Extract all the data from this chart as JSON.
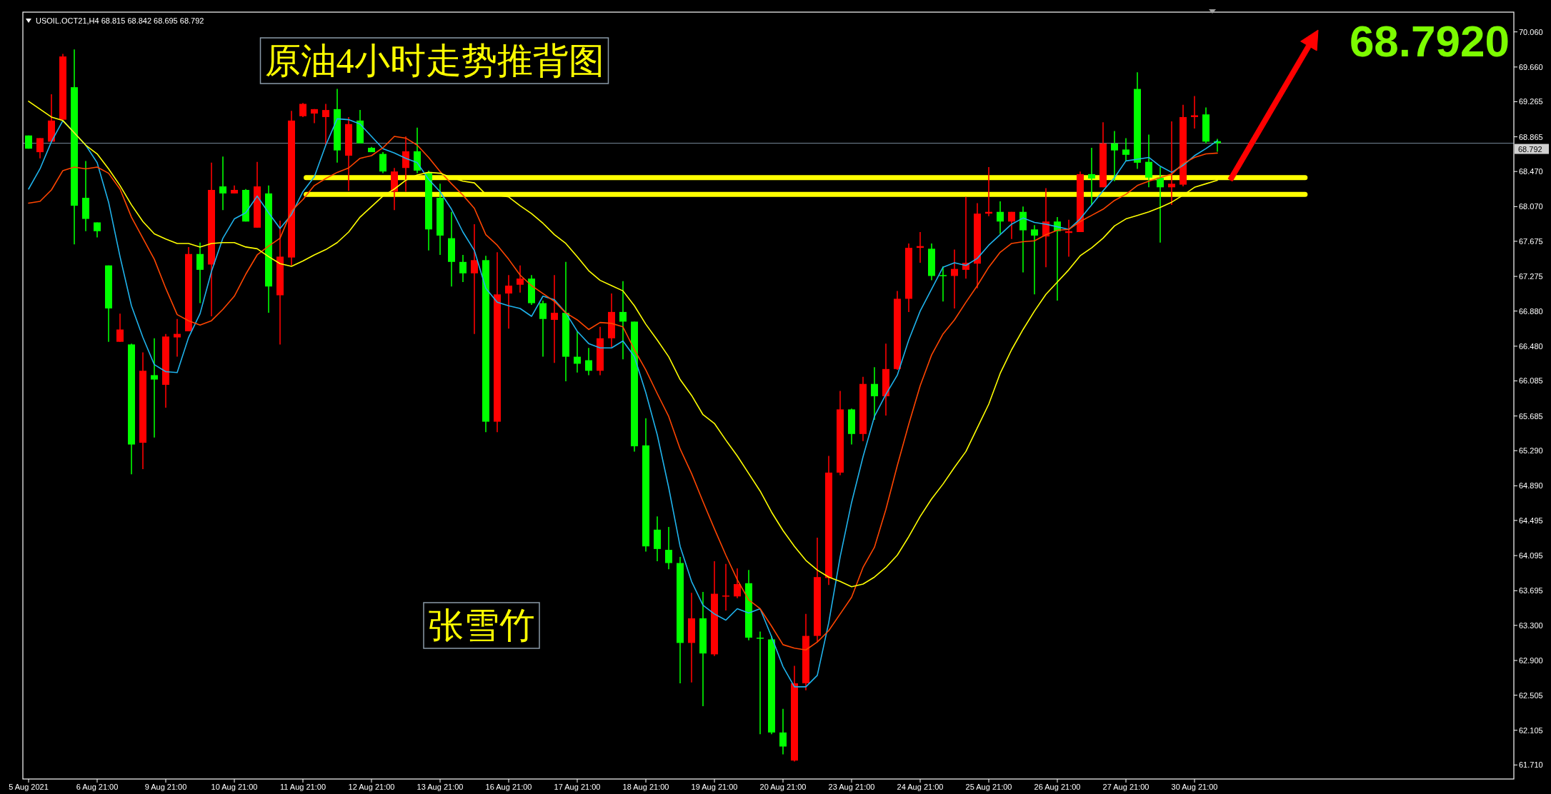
{
  "chart_data": {
    "type": "candlestick",
    "title": "原油4小时走势推背图",
    "annotations": [
      "USOIL.OCT21,H4  68.815 68.842 68.695 68.792",
      "张雪竹",
      "68.7920"
    ],
    "categories": [
      "5 Aug 2021",
      null,
      null,
      null,
      null,
      null,
      "6 Aug 21:00",
      null,
      null,
      null,
      null,
      null,
      "9 Aug 21:00",
      null,
      null,
      null,
      null,
      null,
      "10 Aug 21:00",
      null,
      null,
      null,
      null,
      null,
      "11 Aug 21:00",
      null,
      null,
      null,
      null,
      null,
      "12 Aug 21:00",
      null,
      null,
      null,
      null,
      null,
      "13 Aug 21:00",
      null,
      null,
      null,
      null,
      null,
      "16 Aug 21:00",
      null,
      null,
      null,
      null,
      null,
      "17 Aug 21:00",
      null,
      null,
      null,
      null,
      null,
      "18 Aug 21:00",
      null,
      null,
      null,
      null,
      null,
      "19 Aug 21:00",
      null,
      null,
      null,
      null,
      null,
      "20 Aug 21:00",
      null,
      null,
      null,
      null,
      null,
      "23 Aug 21:00",
      null,
      null,
      null,
      null,
      null,
      "24 Aug 21:00",
      null,
      null,
      null,
      null,
      null,
      "25 Aug 21:00",
      null,
      null,
      null,
      null,
      null,
      "26 Aug 21:00",
      null,
      null,
      null,
      null,
      null,
      "27 Aug 21:00",
      null,
      null,
      null,
      null,
      null,
      "30 Aug 21:00",
      null,
      null
    ],
    "ohlc": [
      [
        68.88,
        68.88,
        68.73,
        68.73
      ],
      [
        68.69,
        68.85,
        68.62,
        68.85
      ],
      [
        68.81,
        69.35,
        68.81,
        69.05
      ],
      [
        69.06,
        69.81,
        69.06,
        69.78
      ],
      [
        69.43,
        69.86,
        67.64,
        68.08
      ],
      [
        68.17,
        68.59,
        67.79,
        67.93
      ],
      [
        67.89,
        67.89,
        67.72,
        67.79
      ],
      [
        67.4,
        67.4,
        66.53,
        66.91
      ],
      [
        66.53,
        66.85,
        66.53,
        66.67
      ],
      [
        66.5,
        66.51,
        65.02,
        65.36
      ],
      [
        65.38,
        66.41,
        65.08,
        66.2
      ],
      [
        66.15,
        66.57,
        65.44,
        66.1
      ],
      [
        66.04,
        66.62,
        65.78,
        66.59
      ],
      [
        66.58,
        66.79,
        66.36,
        66.62
      ],
      [
        66.65,
        67.61,
        66.65,
        67.53
      ],
      [
        67.53,
        67.66,
        66.97,
        67.35
      ],
      [
        67.41,
        68.57,
        66.82,
        68.26
      ],
      [
        68.3,
        68.64,
        68.03,
        68.22
      ],
      [
        68.22,
        68.31,
        68.22,
        68.26
      ],
      [
        68.26,
        68.27,
        67.9,
        67.9
      ],
      [
        67.83,
        68.58,
        67.83,
        68.3
      ],
      [
        68.22,
        68.31,
        66.86,
        67.16
      ],
      [
        67.06,
        67.91,
        66.5,
        67.5
      ],
      [
        67.49,
        69.16,
        67.4,
        69.05
      ],
      [
        69.1,
        69.25,
        69.09,
        69.24
      ],
      [
        69.13,
        69.18,
        69.02,
        69.18
      ],
      [
        69.09,
        69.24,
        68.77,
        69.17
      ],
      [
        69.18,
        69.41,
        68.57,
        68.71
      ],
      [
        68.65,
        69.09,
        68.25,
        69.01
      ],
      [
        69.05,
        69.17,
        68.79,
        68.79
      ],
      [
        68.74,
        68.75,
        68.69,
        68.69
      ],
      [
        68.67,
        68.69,
        68.45,
        68.47
      ],
      [
        68.24,
        68.51,
        68.03,
        68.47
      ],
      [
        68.51,
        68.87,
        68.24,
        68.7
      ],
      [
        68.7,
        68.97,
        68.45,
        68.48
      ],
      [
        68.46,
        68.48,
        67.57,
        67.81
      ],
      [
        68.17,
        68.33,
        67.52,
        67.74
      ],
      [
        67.71,
        68.01,
        67.16,
        67.44
      ],
      [
        67.44,
        67.52,
        67.21,
        67.31
      ],
      [
        67.31,
        67.87,
        66.62,
        67.46
      ],
      [
        67.46,
        67.51,
        65.5,
        65.62
      ],
      [
        65.62,
        67.55,
        65.5,
        67.07
      ],
      [
        67.08,
        67.29,
        66.68,
        67.17
      ],
      [
        67.18,
        67.4,
        67.09,
        67.25
      ],
      [
        67.25,
        67.29,
        66.95,
        66.97
      ],
      [
        66.97,
        67.0,
        66.36,
        66.79
      ],
      [
        66.78,
        67.29,
        66.29,
        66.86
      ],
      [
        66.86,
        67.44,
        66.08,
        66.36
      ],
      [
        66.36,
        66.65,
        66.18,
        66.28
      ],
      [
        66.32,
        66.46,
        66.15,
        66.2
      ],
      [
        66.2,
        66.7,
        66.15,
        66.57
      ],
      [
        66.57,
        67.08,
        66.47,
        66.87
      ],
      [
        66.87,
        67.22,
        66.33,
        66.76
      ],
      [
        66.76,
        66.76,
        65.28,
        65.34
      ],
      [
        65.35,
        65.66,
        64.14,
        64.2
      ],
      [
        64.39,
        64.54,
        64.03,
        64.17
      ],
      [
        64.16,
        64.42,
        63.94,
        64.01
      ],
      [
        64.01,
        64.08,
        62.64,
        63.1
      ],
      [
        63.1,
        63.67,
        62.65,
        63.38
      ],
      [
        63.38,
        63.68,
        62.38,
        62.98
      ],
      [
        62.97,
        64.03,
        62.95,
        63.66
      ],
      [
        63.63,
        64.0,
        63.47,
        63.64
      ],
      [
        63.63,
        63.95,
        63.61,
        63.77
      ],
      [
        63.78,
        63.93,
        63.13,
        63.16
      ],
      [
        63.16,
        63.23,
        62.06,
        63.15
      ],
      [
        63.14,
        63.18,
        62.06,
        62.08
      ],
      [
        62.08,
        62.35,
        61.83,
        61.92
      ],
      [
        61.76,
        62.84,
        61.75,
        62.64
      ],
      [
        62.64,
        63.43,
        62.56,
        63.18
      ],
      [
        63.18,
        64.3,
        63.11,
        63.85
      ],
      [
        63.84,
        65.23,
        63.76,
        65.04
      ],
      [
        65.04,
        65.97,
        65.01,
        65.76
      ],
      [
        65.76,
        65.77,
        65.36,
        65.48
      ],
      [
        65.48,
        66.13,
        65.4,
        66.05
      ],
      [
        66.05,
        66.24,
        65.64,
        65.91
      ],
      [
        65.91,
        66.51,
        65.69,
        66.22
      ],
      [
        66.22,
        67.11,
        66.21,
        67.02
      ],
      [
        67.02,
        67.65,
        66.87,
        67.6
      ],
      [
        67.6,
        67.78,
        67.43,
        67.62
      ],
      [
        67.59,
        67.65,
        67.23,
        67.28
      ],
      [
        67.29,
        67.39,
        66.99,
        67.28
      ],
      [
        67.28,
        67.58,
        66.91,
        67.36
      ],
      [
        67.35,
        68.18,
        67.25,
        67.43
      ],
      [
        67.42,
        68.11,
        67.14,
        67.99
      ],
      [
        67.99,
        68.52,
        67.96,
        68.01
      ],
      [
        68.01,
        68.13,
        67.76,
        67.9
      ],
      [
        67.9,
        68.01,
        67.7,
        68.01
      ],
      [
        68.01,
        68.07,
        67.32,
        67.8
      ],
      [
        67.81,
        67.86,
        67.07,
        67.74
      ],
      [
        67.73,
        68.28,
        67.38,
        67.9
      ],
      [
        67.9,
        67.95,
        67.0,
        67.79
      ],
      [
        67.77,
        67.92,
        67.5,
        67.79
      ],
      [
        67.78,
        68.47,
        67.78,
        68.44
      ],
      [
        68.44,
        68.74,
        68.09,
        68.39
      ],
      [
        68.29,
        69.03,
        68.29,
        68.79
      ],
      [
        68.79,
        68.93,
        68.36,
        68.71
      ],
      [
        68.72,
        68.85,
        68.59,
        68.66
      ],
      [
        69.41,
        69.6,
        68.5,
        68.57
      ],
      [
        68.58,
        68.89,
        68.29,
        68.4
      ],
      [
        68.4,
        68.52,
        67.66,
        68.29
      ],
      [
        68.29,
        69.04,
        68.09,
        68.33
      ],
      [
        68.32,
        69.23,
        68.3,
        69.09
      ],
      [
        69.09,
        69.33,
        68.96,
        69.11
      ],
      [
        69.12,
        69.2,
        68.79,
        68.81
      ],
      [
        68.815,
        68.842,
        68.695,
        68.792
      ]
    ],
    "colors": [
      "#00ff00",
      "#ff0000",
      "#ff0000",
      "#ff0000",
      "#00ff00",
      "#00ff00",
      "#00ff00",
      "#00ff00",
      "#ff0000",
      "#00ff00",
      "#ff0000",
      "#00ff00",
      "#ff0000",
      "#ff0000",
      "#ff0000",
      "#00ff00",
      "#ff0000",
      "#00ff00",
      "#ff0000",
      "#00ff00",
      "#ff0000",
      "#00ff00",
      "#ff0000",
      "#ff0000",
      "#ff0000",
      "#ff0000",
      "#ff0000",
      "#00ff00",
      "#ff0000",
      "#00ff00",
      "#00ff00",
      "#00ff00",
      "#ff0000",
      "#ff0000",
      "#00ff00",
      "#00ff00",
      "#00ff00",
      "#00ff00",
      "#00ff00",
      "#ff0000",
      "#00ff00",
      "#ff0000",
      "#ff0000",
      "#ff0000",
      "#00ff00",
      "#00ff00",
      "#ff0000",
      "#00ff00",
      "#00ff00",
      "#00ff00",
      "#ff0000",
      "#ff0000",
      "#00ff00",
      "#00ff00",
      "#00ff00",
      "#00ff00",
      "#00ff00",
      "#00ff00",
      "#ff0000",
      "#00ff00",
      "#ff0000",
      "#ff0000",
      "#ff0000",
      "#00ff00",
      "#00ff00",
      "#00ff00",
      "#00ff00",
      "#ff0000",
      "#ff0000",
      "#ff0000",
      "#ff0000",
      "#ff0000",
      "#00ff00",
      "#ff0000",
      "#00ff00",
      "#ff0000",
      "#ff0000",
      "#ff0000",
      "#ff0000",
      "#00ff00",
      "#00ff00",
      "#ff0000",
      "#ff0000",
      "#ff0000",
      "#ff0000",
      "#00ff00",
      "#ff0000",
      "#00ff00",
      "#00ff00",
      "#ff0000",
      "#00ff00",
      "#ff0000",
      "#ff0000",
      "#00ff00",
      "#ff0000",
      "#00ff00",
      "#00ff00",
      "#00ff00",
      "#00ff00",
      "#00ff00",
      "#ff0000",
      "#ff0000",
      "#ff0000",
      "#00ff00",
      "#00ff00"
    ],
    "series": [
      {
        "type": "line",
        "color": "#1fb3ec",
        "values": [
          68.27,
          68.5,
          68.81,
          69.05,
          68.91,
          68.77,
          68.57,
          68.12,
          67.5,
          66.94,
          66.58,
          66.27,
          66.19,
          66.18,
          66.58,
          66.85,
          67.33,
          67.71,
          67.93,
          68.0,
          68.19,
          68.0,
          67.82,
          67.98,
          68.24,
          68.41,
          68.77,
          69.07,
          69.06,
          69.01,
          68.87,
          68.73,
          68.68,
          68.62,
          68.57,
          68.38,
          68.24,
          68.04,
          67.78,
          67.57,
          67.14,
          66.98,
          66.94,
          66.91,
          66.82,
          67.05,
          67.01,
          66.86,
          66.65,
          66.51,
          66.46,
          66.46,
          66.54,
          66.36,
          65.95,
          65.47,
          64.87,
          64.2,
          63.8,
          63.53,
          63.43,
          63.36,
          63.49,
          63.44,
          63.49,
          63.17,
          62.83,
          62.6,
          62.6,
          62.73,
          63.33,
          64.08,
          64.7,
          65.22,
          65.68,
          65.93,
          66.15,
          66.55,
          66.88,
          67.13,
          67.38,
          67.43,
          67.4,
          67.48,
          67.63,
          67.75,
          67.87,
          67.94,
          67.89,
          67.87,
          67.84,
          67.81,
          67.93,
          68.09,
          68.25,
          68.4,
          68.59,
          68.61,
          68.63,
          68.53,
          68.46,
          68.54,
          68.65,
          68.73,
          68.82
        ]
      },
      {
        "type": "line",
        "color": "#ff4500",
        "values": [
          68.11,
          68.13,
          68.26,
          68.48,
          68.52,
          68.5,
          68.52,
          68.45,
          68.27,
          67.95,
          67.71,
          67.47,
          67.14,
          66.84,
          66.77,
          66.72,
          66.77,
          66.9,
          67.05,
          67.3,
          67.52,
          67.62,
          67.71,
          68.02,
          68.15,
          68.31,
          68.39,
          68.46,
          68.51,
          68.62,
          68.65,
          68.74,
          68.87,
          68.85,
          68.77,
          68.63,
          68.47,
          68.33,
          68.2,
          68.05,
          67.75,
          67.63,
          67.47,
          67.29,
          67.17,
          67.08,
          66.99,
          66.86,
          66.78,
          66.67,
          66.75,
          66.74,
          66.7,
          66.44,
          66.21,
          65.94,
          65.68,
          65.31,
          65.03,
          64.71,
          64.4,
          64.1,
          63.82,
          63.59,
          63.49,
          63.29,
          63.08,
          63.04,
          63.02,
          63.11,
          63.24,
          63.43,
          63.62,
          63.96,
          64.19,
          64.62,
          65.12,
          65.59,
          66.03,
          66.38,
          66.62,
          66.78,
          66.98,
          67.17,
          67.38,
          67.55,
          67.65,
          67.67,
          67.68,
          67.75,
          67.8,
          67.81,
          67.9,
          67.97,
          68.04,
          68.14,
          68.21,
          68.31,
          68.36,
          68.4,
          68.44,
          68.56,
          68.63,
          68.67,
          68.68
        ]
      },
      {
        "type": "line",
        "color": "#ffff00",
        "values": [
          69.27,
          69.18,
          69.09,
          69.05,
          68.91,
          68.77,
          68.67,
          68.5,
          68.31,
          68.09,
          67.9,
          67.76,
          67.7,
          67.65,
          67.65,
          67.61,
          67.65,
          67.66,
          67.66,
          67.61,
          67.59,
          67.5,
          67.42,
          67.39,
          67.45,
          67.52,
          67.58,
          67.66,
          67.78,
          67.95,
          68.07,
          68.19,
          68.27,
          68.37,
          68.43,
          68.46,
          68.45,
          68.4,
          68.36,
          68.34,
          68.21,
          68.2,
          68.18,
          68.08,
          67.99,
          67.88,
          67.75,
          67.65,
          67.5,
          67.34,
          67.23,
          67.17,
          67.11,
          66.94,
          66.73,
          66.55,
          66.36,
          66.1,
          65.92,
          65.7,
          65.6,
          65.41,
          65.23,
          65.03,
          64.83,
          64.59,
          64.38,
          64.2,
          64.04,
          63.93,
          63.85,
          63.8,
          63.74,
          63.77,
          63.85,
          63.96,
          64.1,
          64.31,
          64.54,
          64.74,
          64.91,
          65.1,
          65.28,
          65.55,
          65.82,
          66.17,
          66.44,
          66.67,
          66.88,
          67.07,
          67.21,
          67.35,
          67.51,
          67.6,
          67.71,
          67.85,
          67.93,
          67.97,
          68.01,
          68.06,
          68.12,
          68.2,
          68.29,
          68.33,
          68.37
        ]
      }
    ],
    "ylim": [
      61.55,
      70.285
    ],
    "yticks": [
      {
        "value": 70.06,
        "label": "70.060"
      },
      {
        "value": 69.66,
        "label": "69.660"
      },
      69.265,
      68.865,
      {
        "value": 68.47,
        "label": "68.470"
      },
      {
        "value": 68.07,
        "label": "68.070"
      },
      67.675,
      67.275,
      {
        "value": 66.88,
        "label": "66.880"
      },
      {
        "value": 66.48,
        "label": "66.480"
      },
      66.085,
      65.685,
      {
        "value": 65.29,
        "label": "65.290"
      },
      {
        "value": 64.89,
        "label": "64.890"
      },
      64.495,
      64.095,
      63.695,
      {
        "value": 63.3,
        "label": "63.300"
      },
      {
        "value": 62.9,
        "label": "62.900"
      },
      62.505,
      62.105,
      {
        "value": 61.71,
        "label": "61.710"
      }
    ],
    "ref_lines": [
      {
        "axis": "y",
        "value": 68.4,
        "color": "#ffff00"
      },
      {
        "axis": "y",
        "value": 68.21,
        "color": "#ffff00"
      },
      {
        "axis": "y",
        "value": 68.792,
        "label": "68.792",
        "color": "#778899"
      }
    ]
  }
}
